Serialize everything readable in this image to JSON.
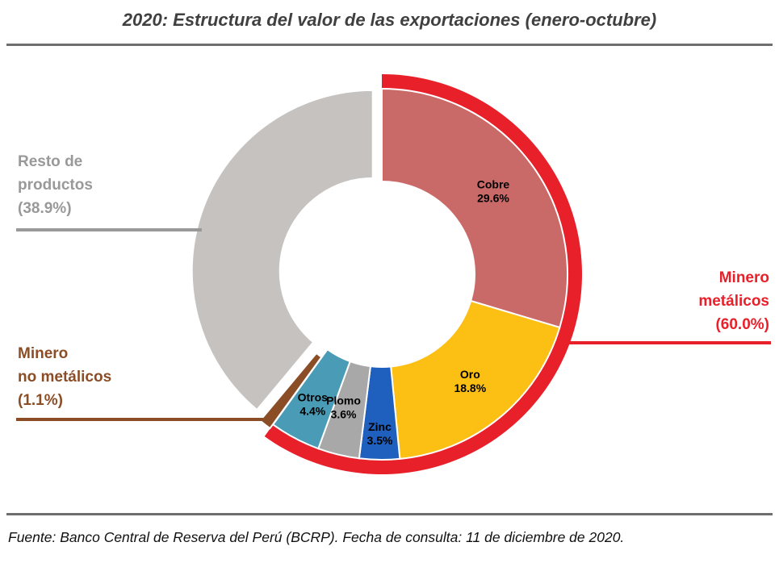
{
  "title": "2020: Estructura del valor de las exportaciones  (enero-octubre)",
  "source": "Fuente: Banco Central de Reserva del Perú (BCRP). Fecha de consulta: 11 de diciembre de 2020.",
  "colors": {
    "cobre": "#c96a68",
    "oro": "#fcbf13",
    "zinc": "#1f5fbd",
    "plomo": "#a8a8a8",
    "otros": "#4a9bb5",
    "no_metalicos": "#8b4d26",
    "resto": "#c5c2bf",
    "minero_metalicos": "#e8202a"
  },
  "chart_data": {
    "type": "pie",
    "title": "2020: Estructura del valor de las exportaciones  (enero-octubre)",
    "slices": [
      {
        "name": "Cobre",
        "value": 29.6,
        "label": "29.6%",
        "group": "Minero metálicos"
      },
      {
        "name": "Oro",
        "value": 18.8,
        "label": "18.8%",
        "group": "Minero metálicos"
      },
      {
        "name": "Zinc",
        "value": 3.5,
        "label": "3.5%",
        "group": "Minero metálicos"
      },
      {
        "name": "Plomo",
        "value": 3.6,
        "label": "3.6%",
        "group": "Minero metálicos"
      },
      {
        "name": "Otros",
        "value": 4.4,
        "label": "4.4%",
        "group": "Minero metálicos"
      },
      {
        "name": "Minero no metálicos",
        "value": 1.1,
        "label": "1.1%",
        "group": "Minero no metálicos"
      },
      {
        "name": "Resto de productos",
        "value": 38.9,
        "label": "38.9%",
        "group": "Resto de productos"
      }
    ],
    "groups": [
      {
        "lines": [
          "Minero",
          "metálicos",
          "(60.0%)"
        ],
        "value": 60.0
      },
      {
        "lines": [
          "Minero",
          "no metálicos",
          "(1.1%)"
        ],
        "value": 1.1
      },
      {
        "lines": [
          "Resto de",
          "productos",
          "(38.9%)"
        ],
        "value": 38.9
      }
    ]
  }
}
